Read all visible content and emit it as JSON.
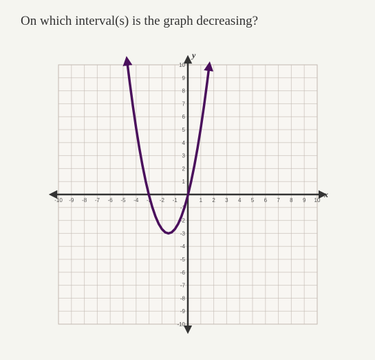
{
  "question": "On which interval(s) is the graph decreasing?",
  "chart": {
    "type": "line",
    "xlim": [
      -10,
      10
    ],
    "ylim": [
      -10,
      10
    ],
    "xtick_step": 1,
    "ytick_step": 1,
    "x_axis_label": "x",
    "y_axis_label": "y",
    "background_color": "#f8f6f2",
    "grid_color": "#c2b8b0",
    "axis_color": "#333333",
    "curve_color": "#4a0f5c",
    "tick_label_color": "#555555",
    "tick_label_fontsize": 8,
    "axis_label_fontsize": 12,
    "axis_line_width": 2.5,
    "curve_line_width": 3.5,
    "grid_line_width": 1,
    "x_tick_labels": [
      -10,
      -9,
      -8,
      -7,
      -6,
      -5,
      -4,
      -3,
      -2,
      -1,
      1,
      2,
      3,
      4,
      5,
      6,
      7,
      8,
      9,
      10
    ],
    "y_tick_labels": [
      -10,
      -9,
      -8,
      -7,
      -6,
      -5,
      -4,
      -3,
      -2,
      -1,
      1,
      2,
      3,
      4,
      5,
      6,
      7,
      8,
      9,
      10
    ],
    "curve": {
      "description": "upward parabola, vertex approx (-1.5, -3), steep",
      "vertex_x": -1.5,
      "vertex_y": -3,
      "a": 1.3,
      "x_samples": [
        -4.7,
        -4.5,
        -4.25,
        -4,
        -3.75,
        -3.5,
        -3.25,
        -3,
        -2.75,
        -2.5,
        -2.25,
        -2,
        -1.75,
        -1.5,
        -1.25,
        -1,
        -0.75,
        -0.5,
        -0.25,
        0,
        0.25,
        0.5,
        0.75,
        1,
        1.25,
        1.5,
        1.65
      ]
    },
    "arrows": {
      "x_neg": true,
      "x_pos": true,
      "y_neg": true,
      "y_pos": true,
      "curve_left": true,
      "curve_right": true
    }
  }
}
